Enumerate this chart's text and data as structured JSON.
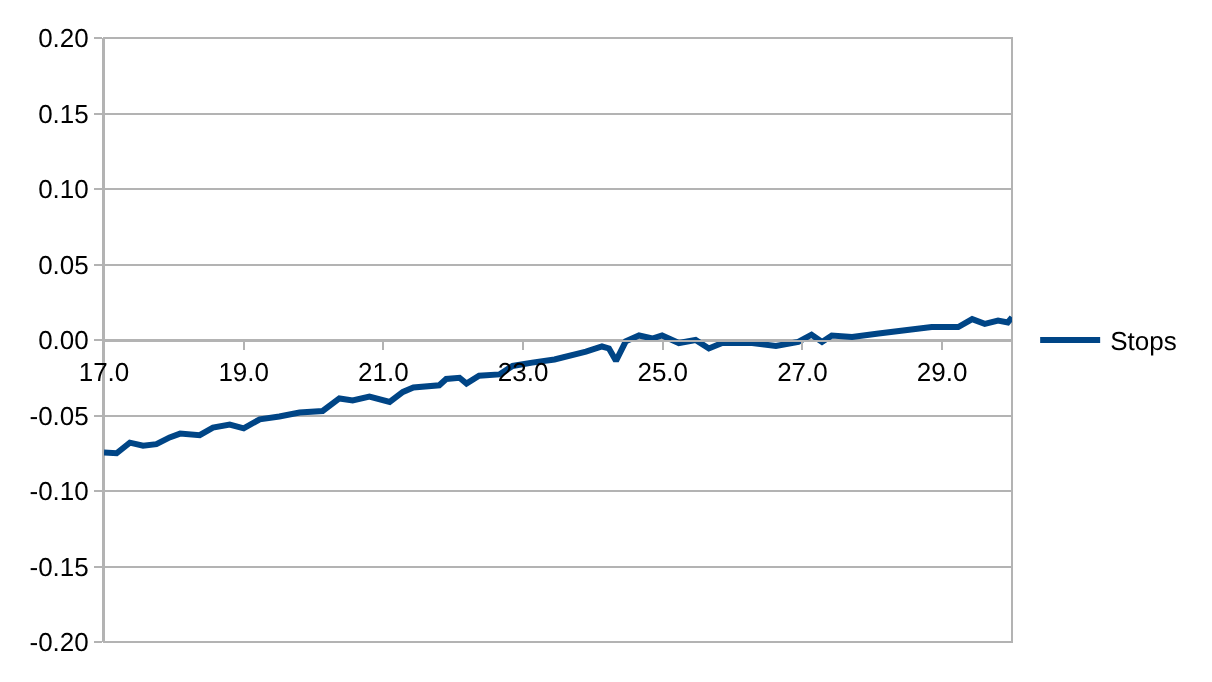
{
  "chart_data": {
    "type": "line",
    "legend": "right",
    "grid": "y",
    "xlim": [
      17,
      30
    ],
    "ylim": [
      -0.2,
      0.2
    ],
    "xticks": [
      {
        "value": 17,
        "label": "17.0"
      },
      {
        "value": 19,
        "label": "19.0"
      },
      {
        "value": 21,
        "label": "21.0"
      },
      {
        "value": 23,
        "label": "23.0"
      },
      {
        "value": 25,
        "label": "25.0"
      },
      {
        "value": 27,
        "label": "27.0"
      },
      {
        "value": 29,
        "label": "29.0"
      }
    ],
    "yticks": [
      {
        "value": -0.2,
        "label": "-0.20"
      },
      {
        "value": -0.15,
        "label": "-0.15"
      },
      {
        "value": -0.1,
        "label": "-0.10"
      },
      {
        "value": -0.05,
        "label": "-0.05"
      },
      {
        "value": 0,
        "label": "0.00"
      },
      {
        "value": 0.05,
        "label": "0.05"
      },
      {
        "value": 0.1,
        "label": "0.10"
      },
      {
        "value": 0.15,
        "label": "0.15"
      },
      {
        "value": 0.2,
        "label": "0.20"
      }
    ],
    "series": [
      {
        "name": "Stops",
        "color": "#004586",
        "x": [
          17.0,
          17.18,
          17.37,
          17.56,
          17.75,
          17.94,
          18.09,
          18.37,
          18.56,
          18.8,
          19.0,
          19.23,
          19.51,
          19.8,
          20.13,
          20.37,
          20.56,
          20.8,
          21.09,
          21.28,
          21.43,
          21.8,
          21.9,
          22.09,
          22.19,
          22.37,
          22.66,
          22.85,
          23.13,
          23.45,
          23.9,
          24.13,
          24.23,
          24.33,
          24.47,
          24.66,
          24.85,
          24.99,
          25.23,
          25.47,
          25.66,
          25.85,
          26.28,
          26.62,
          26.94,
          27.13,
          27.28,
          27.42,
          27.71,
          28.09,
          28.47,
          28.85,
          29.23,
          29.43,
          29.61,
          29.8,
          29.94,
          30.0
        ],
        "values": [
          -0.0745,
          -0.075,
          -0.068,
          -0.07,
          -0.069,
          -0.0645,
          -0.062,
          -0.063,
          -0.058,
          -0.056,
          -0.0585,
          -0.0525,
          -0.0507,
          -0.048,
          -0.047,
          -0.0387,
          -0.04,
          -0.0374,
          -0.041,
          -0.0344,
          -0.0314,
          -0.03,
          -0.0258,
          -0.025,
          -0.0288,
          -0.0236,
          -0.0228,
          -0.0172,
          -0.015,
          -0.0129,
          -0.0077,
          -0.0043,
          -0.0056,
          -0.0138,
          -0.0009,
          0.003,
          0.001,
          0.003,
          -0.002,
          0.0,
          -0.0056,
          -0.002,
          -0.002,
          -0.004,
          -0.0013,
          0.0035,
          -0.0013,
          0.003,
          0.002,
          0.0043,
          0.0065,
          0.0086,
          0.0086,
          0.0138,
          0.0107,
          0.0129,
          0.0116,
          0.015
        ]
      }
    ]
  }
}
